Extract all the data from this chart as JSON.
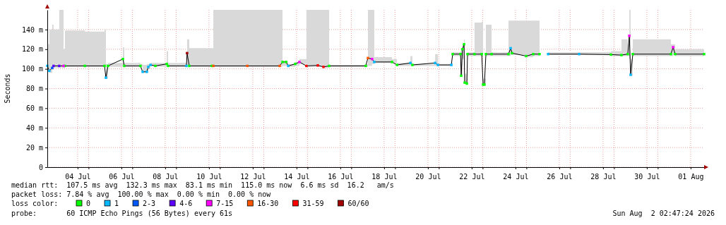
{
  "chart_data": {
    "type": "line",
    "marker": "square",
    "ylabel": "Seconds",
    "legend": "bottom",
    "legend_title": "loss color:",
    "grid": true,
    "ylim": [
      0,
      160
    ],
    "yticks": [
      0,
      {
        "value": 20,
        "label": "20 m"
      },
      {
        "value": 40,
        "label": "40 m"
      },
      {
        "value": 60,
        "label": "60 m"
      },
      {
        "value": 80,
        "label": "80 m"
      },
      {
        "value": 100,
        "label": "100 m"
      },
      {
        "value": 120,
        "label": "120 m"
      },
      {
        "value": 140,
        "label": "140 m"
      }
    ],
    "xlim": [
      "2026-07-03T02:47",
      "2026-08-02T02:47"
    ],
    "xticks": [
      {
        "value": "2026-07-04T12:00",
        "label": "04 Jul"
      },
      {
        "value": "2026-07-05T00:00",
        "label": null
      },
      {
        "value": "2026-07-06T12:00",
        "label": "06 Jul"
      },
      {
        "value": "2026-07-07T00:00",
        "label": null
      },
      {
        "value": "2026-07-08T12:00",
        "label": "08 Jul"
      },
      {
        "value": "2026-07-09T00:00",
        "label": null
      },
      {
        "value": "2026-07-10T12:00",
        "label": "10 Jul"
      },
      {
        "value": "2026-07-11T00:00",
        "label": null
      },
      {
        "value": "2026-07-12T12:00",
        "label": "12 Jul"
      },
      {
        "value": "2026-07-13T00:00",
        "label": null
      },
      {
        "value": "2026-07-14T12:00",
        "label": "14 Jul"
      },
      {
        "value": "2026-07-15T00:00",
        "label": null
      },
      {
        "value": "2026-07-16T12:00",
        "label": "16 Jul"
      },
      {
        "value": "2026-07-17T00:00",
        "label": null
      },
      {
        "value": "2026-07-18T12:00",
        "label": "18 Jul"
      },
      {
        "value": "2026-07-19T00:00",
        "label": null
      },
      {
        "value": "2026-07-20T12:00",
        "label": "20 Jul"
      },
      {
        "value": "2026-07-21T00:00",
        "label": null
      },
      {
        "value": "2026-07-22T12:00",
        "label": "22 Jul"
      },
      {
        "value": "2026-07-23T00:00",
        "label": null
      },
      {
        "value": "2026-07-24T12:00",
        "label": "24 Jul"
      },
      {
        "value": "2026-07-25T00:00",
        "label": null
      },
      {
        "value": "2026-07-26T12:00",
        "label": "26 Jul"
      },
      {
        "value": "2026-07-27T00:00",
        "label": null
      },
      {
        "value": "2026-07-28T12:00",
        "label": "28 Jul"
      },
      {
        "value": "2026-07-29T00:00",
        "label": null
      },
      {
        "value": "2026-07-30T12:00",
        "label": "30 Jul"
      },
      {
        "value": "2026-07-31T00:00",
        "label": null
      },
      {
        "value": "2026-08-01T12:00",
        "label": "01 Aug"
      }
    ],
    "x": [
      "2026-07-03T02:47",
      "2026-07-03T05:00",
      "2026-07-03T08:10",
      "2026-07-03T09:36",
      "2026-07-03T15:50",
      "2026-07-03T20:38",
      "2026-07-03T22:05",
      "2026-07-04T19:55",
      "2026-07-05T17:30",
      "2026-07-05T19:00",
      "2026-07-05T21:20",
      "2026-07-06T13:40",
      "2026-07-06T15:10",
      "2026-07-07T08:53",
      "2026-07-07T11:17",
      "2026-07-07T15:50",
      "2026-07-07T17:30",
      "2026-07-07T19:55",
      "2026-07-08T01:12",
      "2026-07-08T13:40",
      "2026-07-08T15:10",
      "2026-07-09T11:17",
      "2026-07-09T12:00",
      "2026-07-09T14:24",
      "2026-07-10T15:10",
      "2026-07-10T16:48",
      "2026-07-12T06:00",
      "2026-07-13T17:31",
      "2026-07-13T20:38",
      "2026-07-14T00:29",
      "2026-07-14T02:53",
      "2026-07-14T10:34",
      "2026-07-14T15:07",
      "2026-07-14T22:48",
      "2026-07-15T11:17",
      "2026-07-15T17:31",
      "2026-07-15T23:46",
      "2026-07-17T15:50",
      "2026-07-17T18:14",
      "2026-07-17T22:48",
      "2026-07-18T01:12",
      "2026-07-18T20:38",
      "2026-07-19T02:10",
      "2026-07-19T16:48",
      "2026-07-19T19:00",
      "2026-07-20T19:55",
      "2026-07-20T23:02",
      "2026-07-21T13:40",
      "2026-07-21T15:10",
      "2026-07-21T23:46",
      "2026-07-22T00:29",
      "2026-07-22T01:55",
      "2026-07-22T03:36",
      "2026-07-22T04:19",
      "2026-07-22T06:43",
      "2026-07-22T07:26",
      "2026-07-22T15:07",
      "2026-07-22T23:02",
      "2026-07-23T00:29",
      "2026-07-23T01:55",
      "2026-07-23T03:36",
      "2026-07-23T09:50",
      "2026-07-24T04:19",
      "2026-07-24T06:43",
      "2026-07-24T08:10",
      "2026-07-24T23:46",
      "2026-07-25T07:26",
      "2026-07-25T14:24",
      "2026-07-25T19:00",
      "2026-07-25T23:46",
      "2026-07-27T09:50",
      "2026-07-28T20:38",
      "2026-07-29T08:10",
      "2026-07-29T15:07",
      "2026-07-29T16:48",
      "2026-07-29T18:14",
      "2026-07-29T20:38",
      "2026-07-31T14:24",
      "2026-07-31T16:48",
      "2026-07-31T19:00",
      "2026-08-02T02:47"
    ],
    "series": [
      {
        "color": "#000000",
        "marker": "none",
        "values": [
          103,
          98,
          101,
          103,
          103,
          103,
          103,
          103,
          103,
          91,
          103,
          110,
          103,
          103,
          97,
          97,
          102,
          104,
          103,
          105,
          103,
          103,
          116,
          103,
          103,
          103,
          103,
          103,
          107,
          107,
          103,
          105,
          107,
          103,
          103.5,
          102,
          103,
          103,
          111,
          110,
          107,
          107,
          104,
          106,
          104,
          106,
          104,
          104,
          115,
          115,
          93,
          120,
          125,
          86,
          85,
          115,
          115,
          115,
          84,
          84,
          115,
          115,
          115,
          121,
          116,
          113,
          115,
          115,
          null,
          115,
          115,
          114.5,
          114,
          115,
          133.6,
          94,
          115,
          115,
          122,
          115,
          115
        ],
        "lower": [
          97,
          96,
          99,
          101,
          101,
          101,
          102,
          102,
          102,
          90,
          102,
          103,
          102,
          102,
          96,
          96,
          100,
          103,
          102,
          102,
          102,
          102,
          103,
          102,
          102,
          102,
          102,
          102,
          103,
          103,
          102,
          103,
          105,
          102,
          102,
          101,
          102,
          102,
          103,
          105,
          106,
          106,
          103,
          103,
          103,
          103,
          103,
          103,
          113,
          113,
          92,
          110,
          110,
          85,
          84,
          113,
          113,
          113,
          83,
          83,
          113,
          113,
          113,
          114,
          114,
          112,
          113,
          113,
          null,
          114,
          114,
          113,
          113,
          113,
          110,
          93,
          113,
          113,
          114,
          113,
          113
        ],
        "upper": [
          125,
          140,
          145,
          140,
          160,
          120,
          139,
          138,
          140,
          105,
          106,
          122,
          106,
          105,
          104,
          105,
          105,
          106,
          106,
          118,
          106,
          106,
          130,
          121,
          121,
          160,
          160,
          160,
          108,
          108,
          105,
          107,
          110,
          160,
          160,
          160,
          104,
          105,
          160,
          160,
          112,
          110,
          106,
          113,
          105,
          115,
          105,
          106,
          117,
          118,
          120,
          125,
          130,
          95,
          90,
          117,
          147,
          148,
          90,
          90,
          145,
          117,
          149,
          149,
          149,
          149,
          149,
          148,
          null,
          117,
          117,
          118,
          130,
          125,
          160,
          110,
          130,
          125,
          125,
          120,
          118
        ]
      },
      {
        "type": "scatter",
        "name": "0",
        "color": "#00ff00",
        "values": [
          null,
          null,
          null,
          null,
          null,
          null,
          103,
          103,
          103,
          null,
          103,
          110,
          103,
          103,
          null,
          null,
          null,
          null,
          103,
          105,
          103,
          null,
          null,
          103,
          103,
          null,
          null,
          null,
          107,
          107,
          null,
          105,
          null,
          null,
          null,
          null,
          103,
          103,
          null,
          null,
          null,
          107,
          104,
          null,
          104,
          null,
          null,
          null,
          115,
          115,
          93,
          120,
          125,
          86,
          85,
          115,
          115,
          115,
          84,
          84,
          115,
          115,
          115,
          null,
          116,
          113,
          115,
          115,
          null,
          null,
          null,
          114.5,
          114,
          115,
          null,
          null,
          115,
          115,
          null,
          115,
          115
        ]
      },
      {
        "type": "scatter",
        "name": "1",
        "color": "#00b8ff",
        "values": [
          103,
          98,
          null,
          null,
          null,
          null,
          null,
          null,
          null,
          91,
          null,
          null,
          null,
          null,
          97,
          97,
          102,
          104,
          null,
          null,
          null,
          103,
          null,
          null,
          null,
          null,
          null,
          null,
          null,
          null,
          103,
          null,
          null,
          null,
          null,
          null,
          null,
          null,
          null,
          null,
          107,
          null,
          null,
          106,
          null,
          106,
          104,
          104,
          null,
          null,
          null,
          null,
          null,
          null,
          null,
          null,
          null,
          null,
          null,
          null,
          null,
          null,
          null,
          121,
          null,
          null,
          null,
          null,
          null,
          115,
          115,
          null,
          null,
          null,
          null,
          94,
          null,
          null,
          null,
          null,
          null
        ]
      },
      {
        "type": "scatter",
        "name": "2-3",
        "color": "#0059ff",
        "values": [
          null,
          null,
          101,
          null,
          null,
          null,
          null,
          null,
          null,
          null,
          null,
          null,
          null,
          null,
          null,
          null,
          null,
          null,
          null,
          null,
          null,
          null,
          null,
          null,
          null,
          null,
          null,
          null,
          null,
          null,
          null,
          null,
          null,
          null,
          null,
          null,
          null,
          null,
          null,
          null,
          null,
          null,
          null,
          null,
          null,
          null,
          null,
          null,
          null,
          null,
          null,
          null,
          null,
          null,
          null,
          null,
          null,
          null,
          null,
          null,
          null,
          null,
          null,
          null,
          null,
          null,
          null,
          null,
          null,
          null,
          null,
          null,
          null,
          null,
          null,
          null,
          null,
          null,
          null,
          null,
          null
        ]
      },
      {
        "type": "scatter",
        "name": "4-6",
        "color": "#5e00ff",
        "values": [
          null,
          null,
          null,
          103,
          103,
          null,
          null,
          null,
          null,
          null,
          null,
          null,
          null,
          null,
          null,
          null,
          null,
          null,
          null,
          null,
          null,
          null,
          null,
          null,
          null,
          null,
          null,
          null,
          null,
          null,
          null,
          null,
          null,
          null,
          null,
          null,
          null,
          null,
          null,
          null,
          null,
          null,
          null,
          null,
          null,
          null,
          null,
          null,
          null,
          null,
          null,
          null,
          null,
          null,
          null,
          null,
          null,
          null,
          null,
          null,
          null,
          null,
          null,
          null,
          null,
          null,
          null,
          null,
          null,
          null,
          null,
          null,
          null,
          null,
          null,
          null,
          null,
          null,
          null,
          null,
          null
        ]
      },
      {
        "type": "scatter",
        "name": "7-15",
        "color": "#ff00ff",
        "values": [
          null,
          null,
          null,
          null,
          null,
          103,
          null,
          null,
          null,
          null,
          null,
          null,
          null,
          null,
          null,
          null,
          null,
          null,
          null,
          null,
          null,
          null,
          null,
          null,
          null,
          null,
          null,
          null,
          null,
          null,
          null,
          null,
          107,
          null,
          null,
          null,
          null,
          null,
          null,
          110,
          null,
          null,
          null,
          null,
          null,
          null,
          null,
          null,
          null,
          null,
          null,
          null,
          null,
          null,
          null,
          null,
          null,
          null,
          null,
          null,
          null,
          null,
          null,
          null,
          null,
          null,
          null,
          null,
          null,
          null,
          null,
          null,
          null,
          null,
          133.6,
          null,
          null,
          null,
          122,
          null,
          null
        ]
      },
      {
        "type": "scatter",
        "name": "16-30",
        "color": "#ff5500",
        "values": [
          null,
          null,
          null,
          null,
          null,
          null,
          null,
          null,
          null,
          null,
          null,
          null,
          null,
          null,
          null,
          null,
          null,
          null,
          null,
          null,
          null,
          null,
          null,
          null,
          null,
          103,
          103,
          103,
          null,
          null,
          null,
          null,
          null,
          null,
          null,
          null,
          null,
          null,
          111,
          null,
          null,
          null,
          null,
          null,
          null,
          null,
          null,
          null,
          null,
          null,
          null,
          null,
          null,
          null,
          null,
          null,
          null,
          null,
          null,
          null,
          null,
          null,
          null,
          null,
          null,
          null,
          null,
          null,
          null,
          null,
          null,
          null,
          null,
          null,
          null,
          null,
          null,
          null,
          null,
          null,
          null
        ]
      },
      {
        "type": "scatter",
        "name": "31-59",
        "color": "#ff0000",
        "values": [
          null,
          null,
          null,
          null,
          null,
          null,
          null,
          null,
          null,
          null,
          null,
          null,
          null,
          null,
          null,
          null,
          null,
          null,
          null,
          null,
          null,
          null,
          null,
          null,
          null,
          null,
          null,
          null,
          null,
          null,
          null,
          null,
          null,
          103,
          103.5,
          102,
          null,
          null,
          null,
          null,
          null,
          null,
          null,
          null,
          null,
          null,
          null,
          null,
          null,
          null,
          null,
          null,
          null,
          null,
          null,
          null,
          null,
          null,
          null,
          null,
          null,
          null,
          null,
          null,
          null,
          null,
          null,
          null,
          null,
          null,
          null,
          null,
          null,
          null,
          null,
          null,
          null,
          null,
          null,
          null,
          null
        ]
      },
      {
        "type": "scatter",
        "name": "60/60",
        "color": "#a10000",
        "values": [
          null,
          null,
          null,
          null,
          null,
          null,
          null,
          null,
          null,
          null,
          null,
          null,
          null,
          null,
          null,
          null,
          null,
          null,
          null,
          null,
          null,
          null,
          116,
          null,
          null,
          null,
          null,
          null,
          null,
          null,
          null,
          null,
          null,
          null,
          null,
          null,
          null,
          null,
          null,
          null,
          null,
          null,
          null,
          null,
          null,
          null,
          null,
          null,
          null,
          null,
          null,
          null,
          null,
          null,
          null,
          null,
          null,
          null,
          null,
          null,
          null,
          null,
          null,
          null,
          null,
          null,
          null,
          null,
          null,
          null,
          null,
          null,
          null,
          null,
          null,
          null,
          null,
          null,
          null,
          null,
          null
        ]
      }
    ],
    "annotations": [
      "median rtt:  107.5 ms avg  132.3 ms max  83.1 ms min  115.0 ms now  6.6 ms sd  16.2   am/s",
      "packet loss: 7.84 % avg  100.00 % max  0.00 % min  0.00 % now",
      "probe:       60 ICMP Echo Pings (56 Bytes) every 61s",
      "Sun Aug  2 02:47:24 2026"
    ]
  }
}
